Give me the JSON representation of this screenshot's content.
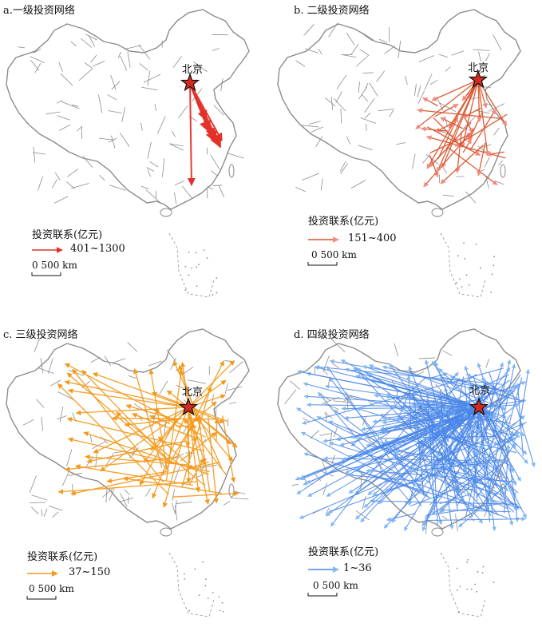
{
  "panels": [
    {
      "title": "a.一级投资网络",
      "city": "北京",
      "legend_title": "投资联系(亿元)",
      "legend_range": "401~1300",
      "color": "#e3312a",
      "arrow_color": "#e3312a",
      "scale": "0   500 km"
    },
    {
      "title": "b. 二级投资网络",
      "city": "北京",
      "legend_title": "投资联系(亿元)",
      "legend_range": "151~400",
      "color": "#d9542c",
      "arrow_color": "#f48a7f",
      "scale": "0   500 km"
    },
    {
      "title": "c. 三级投资网络",
      "city": "北京",
      "legend_title": "投资联系(亿元)",
      "legend_range": "37~150",
      "color": "#f39a1e",
      "arrow_color": "#f39a1e",
      "scale": "0   500 km"
    },
    {
      "title": "d. 四级投资网络",
      "city": "北京",
      "legend_title": "投资联系(亿元)",
      "legend_range": "1~36",
      "color": "#4a86e8",
      "arrow_color": "#7fb8f5",
      "scale": "0   500 km"
    }
  ],
  "map_colors": {
    "boundary": "#8c8c8c",
    "star_fill": "#d62a1e",
    "star_stroke": "#111111"
  }
}
